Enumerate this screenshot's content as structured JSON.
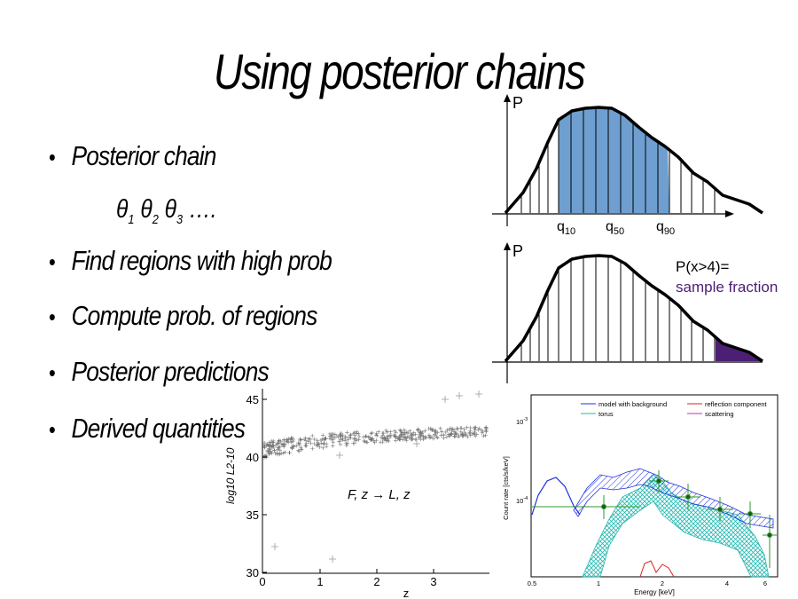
{
  "slide": {
    "title": "Using posterior chains",
    "bullets": [
      "Posterior chain",
      "Find regions with high prob",
      "Compute prob. of regions",
      "Posterior predictions",
      "Derived quantities"
    ],
    "chain": {
      "theta": [
        "θ",
        "θ",
        "θ"
      ],
      "subs": [
        "1",
        "2",
        "3"
      ],
      "ellipsis": "…."
    }
  },
  "quantile_plot": {
    "ylabel": "P",
    "labels": [
      {
        "base": "q",
        "sub": "10"
      },
      {
        "base": "q",
        "sub": "50"
      },
      {
        "base": "q",
        "sub": "90"
      }
    ],
    "fill_color": "#6e9fd0"
  },
  "tail_plot": {
    "ylabel": "P",
    "annotation_line1": "P(x>4)=",
    "annotation_line2": "sample fraction",
    "fill_color": "#4b1f73",
    "annotation_color": "#4b1f73"
  },
  "scatter_panel": {
    "ylabel_text": "log10 L2-10",
    "xlabel": "z",
    "annotation": "F, z → L, z",
    "x_ticks": [
      "0",
      "1",
      "2",
      "3"
    ],
    "y_ticks": [
      "30",
      "35",
      "40",
      "45"
    ]
  },
  "spectrum_panel": {
    "ylabel": "Count rate [cts/s/keV]",
    "xlabel": "Energy [keV]",
    "x_ticks": [
      "0.5",
      "1",
      "2",
      "4",
      "6"
    ],
    "y_ticks": [
      {
        "base": "10",
        "exp": "-3"
      },
      {
        "base": "10",
        "exp": "-4"
      }
    ],
    "legend": [
      {
        "label": "model with background",
        "color": "#1f2fe0"
      },
      {
        "label": "torus",
        "color": "#22b8b0"
      },
      {
        "label": "reflection component",
        "color": "#e02020"
      },
      {
        "label": "scattering",
        "color": "#c030c0"
      }
    ]
  }
}
